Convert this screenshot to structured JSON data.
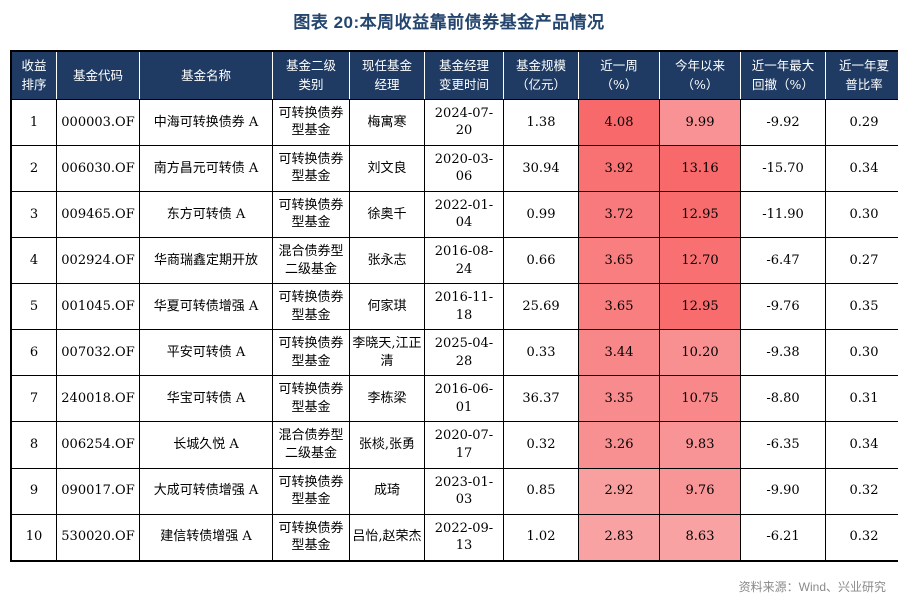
{
  "title": "图表 20:本周收益靠前债券基金产品情况",
  "source_note": "资料来源：Wind、兴业研究",
  "colors": {
    "header_bg": "#1F3B63",
    "title_text": "#24456E",
    "heat_max": "#F8696B",
    "heat_min": "#F8A2A3",
    "source_text": "#8A8A8A"
  },
  "table": {
    "columns": [
      "rank",
      "code",
      "name",
      "category",
      "manager",
      "change_date",
      "scale",
      "week",
      "ytd",
      "drawdown",
      "sharpe"
    ],
    "headers": [
      "收益\n排序",
      "基金代码",
      "基金名称",
      "基金二级\n类别",
      "现任基金\n经理",
      "基金经理\n变更时间",
      "基金规模\n（亿元）",
      "近一周\n（%）",
      "今年以来\n（%）",
      "近一年最大\n回撤（%）",
      "近一年夏\n普比率"
    ],
    "rows": [
      {
        "rank": "1",
        "code": "000003.OF",
        "name": "中海可转换债券 A",
        "category": "可转换债券型基金",
        "manager": "梅寓寒",
        "change_date": "2024-07-20",
        "scale": "1.38",
        "week": "4.08",
        "week_bg": "#F8696B",
        "ytd": "9.99",
        "ytd_bg": "#F89294",
        "drawdown": "-9.92",
        "sharpe": "0.29"
      },
      {
        "rank": "2",
        "code": "006030.OF",
        "name": "南方昌元可转债 A",
        "category": "可转换债券型基金",
        "manager": "刘文良",
        "change_date": "2020-03-06",
        "scale": "30.94",
        "week": "3.92",
        "week_bg": "#F87173",
        "ytd": "13.16",
        "ytd_bg": "#F8696B",
        "drawdown": "-15.70",
        "sharpe": "0.34"
      },
      {
        "rank": "3",
        "code": "009465.OF",
        "name": "东方可转债 A",
        "category": "可转换债券型基金",
        "manager": "徐奥千",
        "change_date": "2022-01-04",
        "scale": "0.99",
        "week": "3.72",
        "week_bg": "#F87A7C",
        "ytd": "12.95",
        "ytd_bg": "#F86C6E",
        "drawdown": "-11.90",
        "sharpe": "0.30"
      },
      {
        "rank": "4",
        "code": "002924.OF",
        "name": "华商瑞鑫定期开放",
        "category": "混合债券型二级基金",
        "manager": "张永志",
        "change_date": "2016-08-24",
        "scale": "0.66",
        "week": "3.65",
        "week_bg": "#F87E80",
        "ytd": "12.70",
        "ytd_bg": "#F87072",
        "drawdown": "-6.47",
        "sharpe": "0.27"
      },
      {
        "rank": "5",
        "code": "001045.OF",
        "name": "华夏可转债增强 A",
        "category": "可转换债券型基金",
        "manager": "何家琪",
        "change_date": "2016-11-18",
        "scale": "25.69",
        "week": "3.65",
        "week_bg": "#F87E80",
        "ytd": "12.95",
        "ytd_bg": "#F86C6E",
        "drawdown": "-9.76",
        "sharpe": "0.35"
      },
      {
        "rank": "6",
        "code": "007032.OF",
        "name": "平安可转债 A",
        "category": "可转换债券型基金",
        "manager": "李晓天,江正清",
        "change_date": "2025-04-28",
        "scale": "0.33",
        "week": "3.44",
        "week_bg": "#F88789",
        "ytd": "10.20",
        "ytd_bg": "#F89092",
        "drawdown": "-9.38",
        "sharpe": "0.30"
      },
      {
        "rank": "7",
        "code": "240018.OF",
        "name": "华宝可转债 A",
        "category": "可转换债券型基金",
        "manager": "李栋梁",
        "change_date": "2016-06-01",
        "scale": "36.37",
        "week": "3.35",
        "week_bg": "#F88B8D",
        "ytd": "10.75",
        "ytd_bg": "#F88889",
        "drawdown": "-8.80",
        "sharpe": "0.31"
      },
      {
        "rank": "8",
        "code": "006254.OF",
        "name": "长城久悦 A",
        "category": "混合债券型二级基金",
        "manager": "张棪,张勇",
        "change_date": "2020-07-17",
        "scale": "0.32",
        "week": "3.26",
        "week_bg": "#F89092",
        "ytd": "9.83",
        "ytd_bg": "#F89496",
        "drawdown": "-6.35",
        "sharpe": "0.34"
      },
      {
        "rank": "9",
        "code": "090017.OF",
        "name": "大成可转债增强 A",
        "category": "可转换债券型基金",
        "manager": "成琦",
        "change_date": "2023-01-03",
        "scale": "0.85",
        "week": "2.92",
        "week_bg": "#F89FA0",
        "ytd": "9.76",
        "ytd_bg": "#F89597",
        "drawdown": "-9.90",
        "sharpe": "0.32"
      },
      {
        "rank": "10",
        "code": "530020.OF",
        "name": "建信转债增强 A",
        "category": "可转换债券型基金",
        "manager": "吕怡,赵荣杰",
        "change_date": "2022-09-13",
        "scale": "1.02",
        "week": "2.83",
        "week_bg": "#F8A2A3",
        "ytd": "8.63",
        "ytd_bg": "#F8A2A3",
        "drawdown": "-6.21",
        "sharpe": "0.32"
      }
    ]
  }
}
